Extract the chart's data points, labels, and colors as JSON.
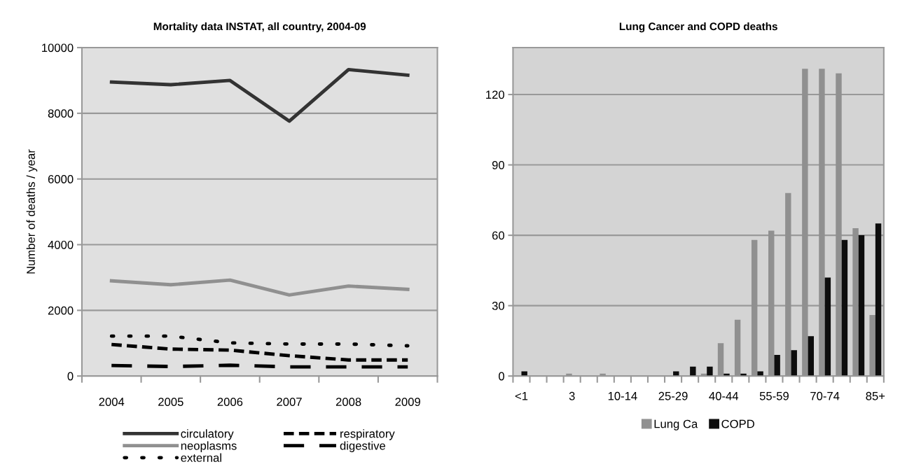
{
  "chart_data": [
    {
      "type": "line",
      "title": "Mortality data INSTAT, all country, 2004-09",
      "ylabel": "Number of deaths / year",
      "categories": [
        "2004",
        "2005",
        "2006",
        "2007",
        "2008",
        "2009"
      ],
      "series": [
        {
          "name": "circulatory",
          "color": "#333333",
          "line_style": "solid",
          "values": [
            8950,
            8870,
            9000,
            7760,
            9330,
            9160
          ]
        },
        {
          "name": "neoplasms",
          "color": "#909090",
          "line_style": "solid",
          "values": [
            2900,
            2780,
            2920,
            2470,
            2740,
            2640
          ]
        },
        {
          "name": "external",
          "color": "#000000",
          "line_style": "dotted",
          "values": [
            1215,
            1215,
            1010,
            975,
            975,
            920
          ]
        },
        {
          "name": "respiratory",
          "color": "#000000",
          "line_style": "dashed",
          "values": [
            960,
            820,
            790,
            620,
            490,
            490
          ]
        },
        {
          "name": "digestive",
          "color": "#000000",
          "line_style": "dashed",
          "values": [
            320,
            290,
            330,
            280,
            280,
            280
          ]
        }
      ],
      "ylim": [
        0,
        10000
      ],
      "yticks": [
        0,
        2000,
        4000,
        6000,
        8000,
        10000
      ],
      "grid": "y",
      "legend": "bottom",
      "marker": "none"
    },
    {
      "type": "bar",
      "title": "Lung Cancer and COPD deaths",
      "categories": [
        "<1",
        null,
        null,
        "3",
        null,
        null,
        "10-14",
        null,
        null,
        "25-29",
        null,
        null,
        "40-44",
        null,
        null,
        "55-59",
        null,
        null,
        "70-74",
        null,
        null,
        "85+"
      ],
      "series": [
        {
          "name": "Lung Ca",
          "color": "#909090",
          "values": [
            0,
            0,
            0,
            1,
            0,
            1,
            0,
            0,
            0,
            0,
            0,
            1,
            14,
            24,
            58,
            62,
            78,
            131,
            131,
            129,
            63,
            26
          ]
        },
        {
          "name": "COPD",
          "color": "#0d0d0d",
          "values": [
            2,
            0,
            0,
            0,
            0,
            0,
            0,
            0,
            0,
            2,
            4,
            4,
            1,
            1,
            2,
            9,
            11,
            17,
            42,
            58,
            60,
            65
          ]
        }
      ],
      "ylim": [
        0,
        140
      ],
      "yticks": [
        0,
        30,
        60,
        90,
        120
      ],
      "grid": "y",
      "legend": "bottom"
    }
  ]
}
